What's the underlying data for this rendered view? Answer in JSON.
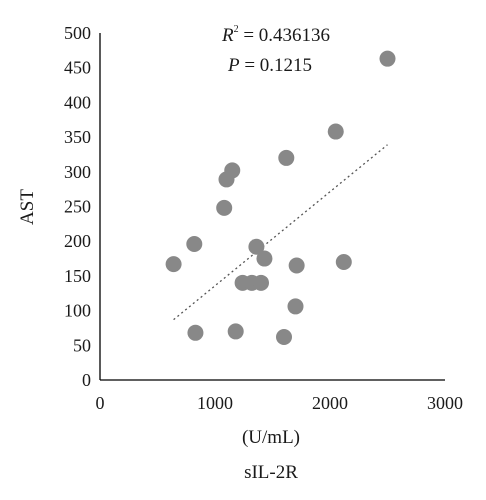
{
  "chart_data": {
    "type": "scatter",
    "title": "",
    "xlabel": "(U/mL)",
    "xlabel2": "sIL-2R",
    "ylabel": "AST",
    "xlim": [
      0,
      3000
    ],
    "ylim": [
      0,
      500
    ],
    "x_ticks": [
      "0",
      "1000",
      "2000",
      "3000"
    ],
    "y_ticks": [
      "0",
      "50",
      "100",
      "150",
      "200",
      "250",
      "300",
      "350",
      "400",
      "450",
      "500"
    ],
    "grid": false,
    "point_color": "#888888",
    "annotations": {
      "r2_symbol": "R",
      "r2_sup": "2",
      "r2_rest": " = 0.436136",
      "p_symbol": "P",
      "p_rest": " = 0.1215"
    },
    "series": [
      {
        "points": [
          [
            640,
            167
          ],
          [
            820,
            196
          ],
          [
            830,
            68
          ],
          [
            1080,
            248
          ],
          [
            1100,
            289
          ],
          [
            1150,
            302
          ],
          [
            1180,
            70
          ],
          [
            1240,
            140
          ],
          [
            1320,
            140
          ],
          [
            1400,
            140
          ],
          [
            1360,
            192
          ],
          [
            1430,
            175
          ],
          [
            1600,
            62
          ],
          [
            1620,
            320
          ],
          [
            1700,
            106
          ],
          [
            1710,
            165
          ],
          [
            2050,
            358
          ],
          [
            2120,
            170
          ],
          [
            2500,
            463
          ]
        ]
      }
    ],
    "trendline": {
      "style": "dotted",
      "x": [
        640,
        2500
      ],
      "y": [
        87,
        339
      ]
    }
  }
}
